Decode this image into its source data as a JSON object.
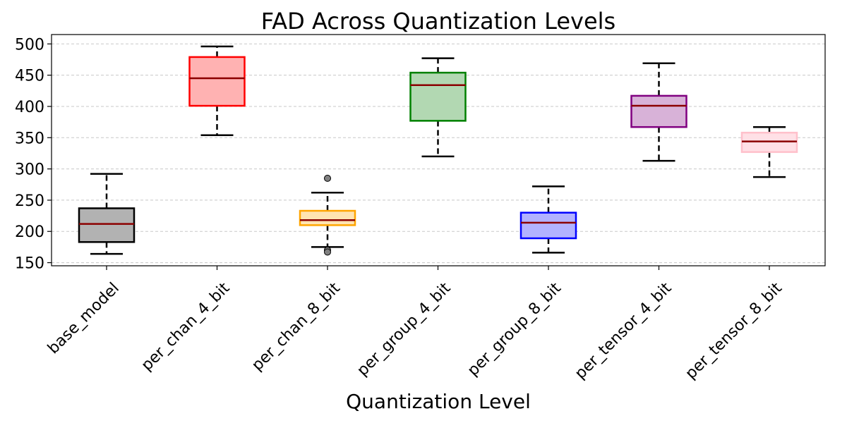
{
  "chart_data": {
    "type": "box",
    "title": "FAD Across Quantization Levels",
    "xlabel": "Quantization Level",
    "ylabel": "",
    "ylim": [
      145,
      515
    ],
    "yticks": [
      150,
      200,
      250,
      300,
      350,
      400,
      450,
      500
    ],
    "grid": "y-dashed",
    "categories": [
      "base_model",
      "per_chan_4_bit",
      "per_chan_8_bit",
      "per_group_4_bit",
      "per_group_8_bit",
      "per_tensor_4_bit",
      "per_tensor_8_bit"
    ],
    "boxes": [
      {
        "label": "base_model",
        "whisker_low": 164,
        "q1": 183,
        "median": 212,
        "q3": 237,
        "whisker_high": 292,
        "outliers": [],
        "fill": "#b2b2b2",
        "edge": "#000000"
      },
      {
        "label": "per_chan_4_bit",
        "whisker_low": 354,
        "q1": 401,
        "median": 445,
        "q3": 479,
        "whisker_high": 496,
        "outliers": [],
        "fill": "#ffb2b2",
        "edge": "#ff0000"
      },
      {
        "label": "per_chan_8_bit",
        "whisker_low": 175,
        "q1": 210,
        "median": 218,
        "q3": 233,
        "whisker_high": 262,
        "outliers": [
          285,
          170,
          167
        ],
        "fill": "#ffe4b2",
        "edge": "#ffa500"
      },
      {
        "label": "per_group_4_bit",
        "whisker_low": 320,
        "q1": 377,
        "median": 434,
        "q3": 454,
        "whisker_high": 477,
        "outliers": [],
        "fill": "#b2d8b2",
        "edge": "#008000"
      },
      {
        "label": "per_group_8_bit",
        "whisker_low": 166,
        "q1": 189,
        "median": 214,
        "q3": 230,
        "whisker_high": 272,
        "outliers": [],
        "fill": "#b2b2ff",
        "edge": "#0000ff"
      },
      {
        "label": "per_tensor_4_bit",
        "whisker_low": 313,
        "q1": 367,
        "median": 401,
        "q3": 417,
        "whisker_high": 469,
        "outliers": [],
        "fill": "#d8b2d8",
        "edge": "#800080"
      },
      {
        "label": "per_tensor_8_bit",
        "whisker_low": 287,
        "q1": 327,
        "median": 344,
        "q3": 358,
        "whisker_high": 367,
        "outliers": [],
        "fill": "#ffe0e6",
        "edge": "#ffc0cb"
      }
    ],
    "median_color": "#8b0000",
    "whisker_color": "#000000",
    "outlier_fill": "#808080"
  }
}
